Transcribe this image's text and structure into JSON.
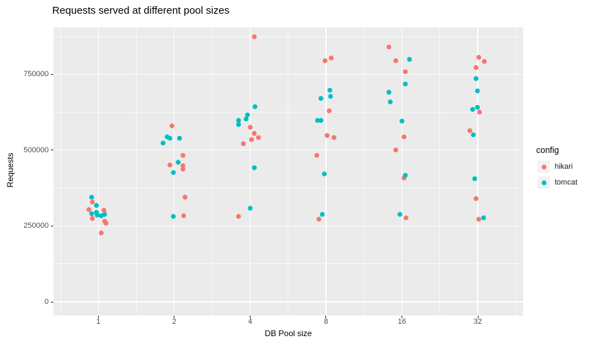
{
  "chart_data": {
    "type": "scatter",
    "title": "Requests served at different pool sizes",
    "xlabel": "DB Pool size",
    "ylabel": "Requests",
    "legend_title": "config",
    "legend_position": "right",
    "x_scale": "log2",
    "x_ticks": [
      1,
      2,
      4,
      8,
      16,
      32
    ],
    "x_tick_labels": [
      "1",
      "2",
      "4",
      "8",
      "16",
      "32"
    ],
    "x_minor_ticks": [
      0.7071,
      1.4142,
      2.8284,
      5.6569,
      11.3137,
      22.6274,
      45.2548
    ],
    "y_ticks": [
      0,
      250000,
      500000,
      750000
    ],
    "y_tick_labels": [
      "0",
      "250000",
      "500000",
      "750000"
    ],
    "y_minor_ticks": [
      125000,
      375000,
      625000,
      875000
    ],
    "ylim": [
      -45000,
      905000
    ],
    "grid": true,
    "panel_bg": "#EBEBEB",
    "grid_color": "#FFFFFF",
    "axis_text_color": "#4D4D4D",
    "series": [
      {
        "name": "hikari",
        "color": "#F8766D",
        "points": [
          {
            "pool": 1,
            "requests": 330000,
            "dx": -9
          },
          {
            "pool": 1,
            "requests": 304000,
            "dx": -14
          },
          {
            "pool": 1,
            "requests": 302000,
            "dx": 8
          },
          {
            "pool": 1,
            "requests": 275000,
            "dx": -9
          },
          {
            "pool": 1,
            "requests": 265000,
            "dx": 9
          },
          {
            "pool": 1,
            "requests": 259000,
            "dx": 11
          },
          {
            "pool": 1,
            "requests": 227000,
            "dx": 4
          },
          {
            "pool": 2,
            "requests": 579000,
            "dx": -3
          },
          {
            "pool": 2,
            "requests": 482000,
            "dx": 13
          },
          {
            "pool": 2,
            "requests": 450000,
            "dx": -6
          },
          {
            "pool": 2,
            "requests": 448000,
            "dx": 13
          },
          {
            "pool": 2,
            "requests": 438000,
            "dx": 13
          },
          {
            "pool": 2,
            "requests": 345000,
            "dx": 16
          },
          {
            "pool": 2,
            "requests": 284000,
            "dx": 14
          },
          {
            "pool": 4,
            "requests": 874000,
            "dx": 6
          },
          {
            "pool": 4,
            "requests": 576000,
            "dx": 0
          },
          {
            "pool": 4,
            "requests": 555000,
            "dx": 6
          },
          {
            "pool": 4,
            "requests": 541000,
            "dx": 12
          },
          {
            "pool": 4,
            "requests": 535000,
            "dx": 2
          },
          {
            "pool": 4,
            "requests": 520000,
            "dx": -10
          },
          {
            "pool": 4,
            "requests": 281000,
            "dx": -17
          },
          {
            "pool": 8,
            "requests": 804000,
            "dx": 8
          },
          {
            "pool": 8,
            "requests": 795000,
            "dx": -1
          },
          {
            "pool": 8,
            "requests": 629000,
            "dx": 5
          },
          {
            "pool": 8,
            "requests": 549000,
            "dx": 2
          },
          {
            "pool": 8,
            "requests": 542000,
            "dx": 12
          },
          {
            "pool": 8,
            "requests": 482000,
            "dx": -13
          },
          {
            "pool": 8,
            "requests": 273000,
            "dx": -10
          },
          {
            "pool": 16,
            "requests": 839000,
            "dx": -19
          },
          {
            "pool": 16,
            "requests": 795000,
            "dx": -9
          },
          {
            "pool": 16,
            "requests": 759000,
            "dx": 5
          },
          {
            "pool": 16,
            "requests": 543000,
            "dx": 3
          },
          {
            "pool": 16,
            "requests": 500000,
            "dx": -9
          },
          {
            "pool": 16,
            "requests": 409000,
            "dx": 3
          },
          {
            "pool": 16,
            "requests": 276000,
            "dx": 6
          },
          {
            "pool": 32,
            "requests": 806000,
            "dx": 1
          },
          {
            "pool": 32,
            "requests": 793000,
            "dx": 9
          },
          {
            "pool": 32,
            "requests": 771000,
            "dx": -3
          },
          {
            "pool": 32,
            "requests": 625000,
            "dx": 2
          },
          {
            "pool": 32,
            "requests": 565000,
            "dx": -12
          },
          {
            "pool": 32,
            "requests": 341000,
            "dx": -3
          },
          {
            "pool": 32,
            "requests": 273000,
            "dx": 1
          }
        ]
      },
      {
        "name": "tomcat",
        "color": "#00BFC4",
        "points": [
          {
            "pool": 1,
            "requests": 345000,
            "dx": -10
          },
          {
            "pool": 1,
            "requests": 317000,
            "dx": -3
          },
          {
            "pool": 1,
            "requests": 296000,
            "dx": -3
          },
          {
            "pool": 1,
            "requests": 291000,
            "dx": -10
          },
          {
            "pool": 1,
            "requests": 289000,
            "dx": 9
          },
          {
            "pool": 1,
            "requests": 286000,
            "dx": -2
          },
          {
            "pool": 1,
            "requests": 284000,
            "dx": 4
          },
          {
            "pool": 2,
            "requests": 544000,
            "dx": -10
          },
          {
            "pool": 2,
            "requests": 539000,
            "dx": -6
          },
          {
            "pool": 2,
            "requests": 538000,
            "dx": 8
          },
          {
            "pool": 2,
            "requests": 524000,
            "dx": -16
          },
          {
            "pool": 2,
            "requests": 460000,
            "dx": 6
          },
          {
            "pool": 2,
            "requests": 426000,
            "dx": -1
          },
          {
            "pool": 2,
            "requests": 281000,
            "dx": -1
          },
          {
            "pool": 4,
            "requests": 644000,
            "dx": 7
          },
          {
            "pool": 4,
            "requests": 616000,
            "dx": -4
          },
          {
            "pool": 4,
            "requests": 603000,
            "dx": -6
          },
          {
            "pool": 4,
            "requests": 599000,
            "dx": -17
          },
          {
            "pool": 4,
            "requests": 584000,
            "dx": -17
          },
          {
            "pool": 4,
            "requests": 442000,
            "dx": 6
          },
          {
            "pool": 4,
            "requests": 309000,
            "dx": 0
          },
          {
            "pool": 8,
            "requests": 697000,
            "dx": 6
          },
          {
            "pool": 8,
            "requests": 676000,
            "dx": 7
          },
          {
            "pool": 8,
            "requests": 671000,
            "dx": -7
          },
          {
            "pool": 8,
            "requests": 597000,
            "dx": -12
          },
          {
            "pool": 8,
            "requests": 597000,
            "dx": -7
          },
          {
            "pool": 8,
            "requests": 422000,
            "dx": -2
          },
          {
            "pool": 8,
            "requests": 289000,
            "dx": -5
          },
          {
            "pool": 16,
            "requests": 799000,
            "dx": 11
          },
          {
            "pool": 16,
            "requests": 718000,
            "dx": 5
          },
          {
            "pool": 16,
            "requests": 691000,
            "dx": -19
          },
          {
            "pool": 16,
            "requests": 659000,
            "dx": -17
          },
          {
            "pool": 16,
            "requests": 595000,
            "dx": 0
          },
          {
            "pool": 16,
            "requests": 417000,
            "dx": 5
          },
          {
            "pool": 16,
            "requests": 288000,
            "dx": -3
          },
          {
            "pool": 32,
            "requests": 736000,
            "dx": -3
          },
          {
            "pool": 32,
            "requests": 696000,
            "dx": -1
          },
          {
            "pool": 32,
            "requests": 640000,
            "dx": -1
          },
          {
            "pool": 32,
            "requests": 633000,
            "dx": -8
          },
          {
            "pool": 32,
            "requests": 550000,
            "dx": -7
          },
          {
            "pool": 32,
            "requests": 405000,
            "dx": -5
          },
          {
            "pool": 32,
            "requests": 277000,
            "dx": 8
          }
        ]
      }
    ]
  }
}
